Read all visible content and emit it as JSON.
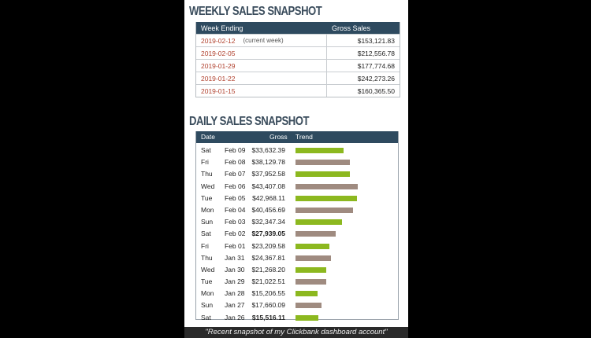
{
  "weekly": {
    "title": "WEEKLY SALES SNAPSHOT",
    "headers": [
      "Week Ending",
      "Gross Sales"
    ],
    "rows": [
      {
        "week": "2019-02-12",
        "note": "(current week)",
        "gross": "$153,121.83"
      },
      {
        "week": "2019-02-05",
        "note": "",
        "gross": "$212,556.78"
      },
      {
        "week": "2019-01-29",
        "note": "",
        "gross": "$177,774.68"
      },
      {
        "week": "2019-01-22",
        "note": "",
        "gross": "$242,273.26"
      },
      {
        "week": "2019-01-15",
        "note": "",
        "gross": "$160,365.50"
      }
    ]
  },
  "daily": {
    "title": "DAILY SALES SNAPSHOT",
    "headers": [
      "Date",
      "Gross",
      "Trend"
    ],
    "rows": [
      {
        "day": "Sat",
        "date": "Feb 09",
        "gross": "$33,632.39",
        "bold": false,
        "bar": 61,
        "color": "green"
      },
      {
        "day": "Fri",
        "date": "Feb 08",
        "gross": "$38,129.78",
        "bold": false,
        "bar": 69,
        "color": "gray"
      },
      {
        "day": "Thu",
        "date": "Feb 07",
        "gross": "$37,952.58",
        "bold": false,
        "bar": 69,
        "color": "green"
      },
      {
        "day": "Wed",
        "date": "Feb 06",
        "gross": "$43,407.08",
        "bold": false,
        "bar": 79,
        "color": "gray"
      },
      {
        "day": "Tue",
        "date": "Feb 05",
        "gross": "$42,968.11",
        "bold": false,
        "bar": 78,
        "color": "green"
      },
      {
        "day": "Mon",
        "date": "Feb 04",
        "gross": "$40,456.69",
        "bold": false,
        "bar": 73,
        "color": "gray"
      },
      {
        "day": "Sun",
        "date": "Feb 03",
        "gross": "$32,347.34",
        "bold": false,
        "bar": 59,
        "color": "green"
      },
      {
        "day": "Sat",
        "date": "Feb 02",
        "gross": "$27,939.05",
        "bold": true,
        "bar": 51,
        "color": "gray"
      },
      {
        "day": "Fri",
        "date": "Feb 01",
        "gross": "$23,209.58",
        "bold": false,
        "bar": 43,
        "color": "green"
      },
      {
        "day": "Thu",
        "date": "Jan 31",
        "gross": "$24,367.81",
        "bold": false,
        "bar": 45,
        "color": "gray"
      },
      {
        "day": "Wed",
        "date": "Jan 30",
        "gross": "$21,268.20",
        "bold": false,
        "bar": 39,
        "color": "green"
      },
      {
        "day": "Tue",
        "date": "Jan 29",
        "gross": "$21,022.51",
        "bold": false,
        "bar": 39,
        "color": "gray"
      },
      {
        "day": "Mon",
        "date": "Jan 28",
        "gross": "$15,206.55",
        "bold": false,
        "bar": 28,
        "color": "green"
      },
      {
        "day": "Sun",
        "date": "Jan 27",
        "gross": "$17,660.09",
        "bold": false,
        "bar": 33,
        "color": "gray"
      },
      {
        "day": "Sat",
        "date": "Jan 26",
        "gross": "$15,516.11",
        "bold": true,
        "bar": 29,
        "color": "green"
      }
    ]
  },
  "colors": {
    "header_bg": "#2e4a5f",
    "bar_green": "#8cb81f",
    "bar_gray": "#9f8b80",
    "date_link": "#b0402d"
  },
  "caption": "\"Recent snapshot of my Clickbank dashboard account\""
}
